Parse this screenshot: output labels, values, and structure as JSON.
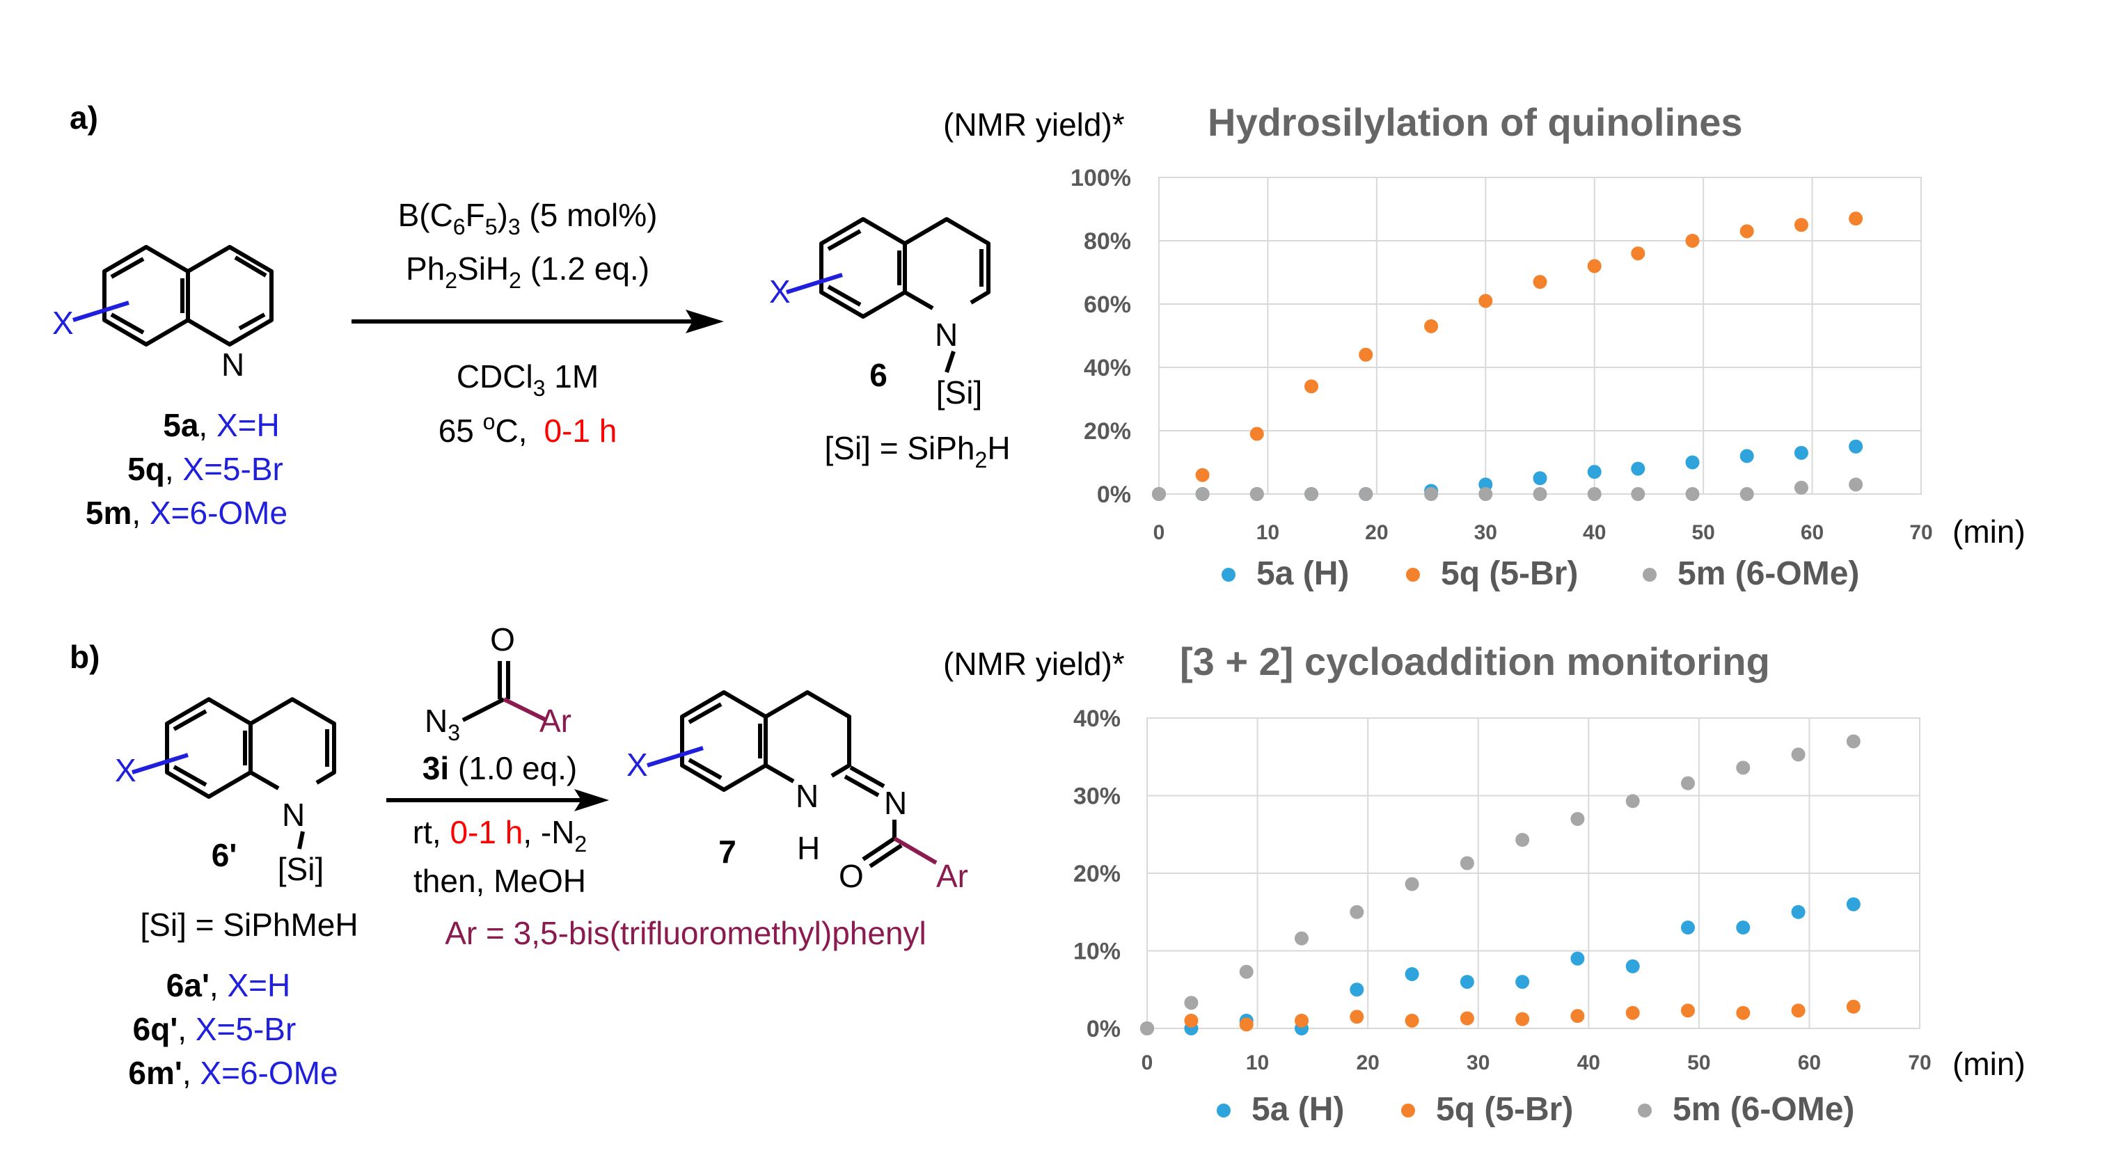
{
  "colors": {
    "blue_text": "#1f1fdc",
    "red_text": "#ff0000",
    "maroon_text": "#8b1a4f",
    "series_5a": "#2ea3dc",
    "series_5q": "#f4822c",
    "series_5m": "#a6a6a6",
    "chart_text": "#595959",
    "title_text": "#666666"
  },
  "panel_a": {
    "label": "a)",
    "sm_label_5a": "5a",
    "sm_eq_5a": "X=H",
    "sm_label_5q": "5q",
    "sm_eq_5q": "X=5-Br",
    "sm_label_5m": "5m",
    "sm_eq_5m": "X=6-OMe",
    "x_sub": "X",
    "n_atom": "N",
    "cond_catalyst_pre": "B(C",
    "cond_catalyst_sub1": "6",
    "cond_catalyst_mid": "F",
    "cond_catalyst_sub2": "5",
    "cond_catalyst_post1": ")",
    "cond_catalyst_sub3": "3",
    "cond_catalyst_post2": " (5 mol%)",
    "cond_silane_pre": "Ph",
    "cond_silane_sub1": "2",
    "cond_silane_mid": "SiH",
    "cond_silane_sub2": "2",
    "cond_silane_post": " (1.2 eq.)",
    "cond_solvent_pre": "CDCl",
    "cond_solvent_sub": "3",
    "cond_solvent_post": " 1M",
    "cond_temp_pre": "65 ",
    "cond_temp_sup": "o",
    "cond_temp_post": "C,",
    "cond_time": "0-1 h",
    "product_label": "6",
    "product_si": "[Si]",
    "si_def_pre": "[Si] = SiPh",
    "si_def_sub": "2",
    "si_def_post": "H"
  },
  "panel_b": {
    "label": "b)",
    "sm_label": "6'",
    "sm_si": "[Si]",
    "si_def": "[Si] = SiPhMeH",
    "sm_label_6a": "6a'",
    "sm_eq_6a": "X=H",
    "sm_label_6q": "6q'",
    "sm_eq_6q": "X=5-Br",
    "sm_label_6m": "6m'",
    "sm_eq_6m": "X=6-OMe",
    "x_sub": "X",
    "n_atom": "N",
    "reagent_O": "O",
    "reagent_N3_pre": "N",
    "reagent_N3_sub": "3",
    "reagent_Ar": "Ar",
    "reagent_label": "3i",
    "reagent_eq": " (1.0 eq.)",
    "cond_rt": "rt, ",
    "cond_time": "0-1 h",
    "cond_n2_pre": ", -N",
    "cond_n2_sub": "2",
    "cond_then": "then, MeOH",
    "ar_def": "Ar = 3,5-bis(trifluoromethyl)phenyl",
    "product_label": "7",
    "product_NH_N": "N",
    "product_NH_H": "H",
    "product_N": "N",
    "product_O": "O",
    "product_Ar": "Ar"
  },
  "chart_data": [
    {
      "type": "scatter",
      "title": "Hydrosilylation of quinolines",
      "ylabel": "(NMR yield)*",
      "xlabel": "(min)",
      "xlim": [
        0,
        70
      ],
      "ylim": [
        0,
        100
      ],
      "xticks": [
        0,
        10,
        20,
        30,
        40,
        50,
        60,
        70
      ],
      "xtick_labels": [
        "0",
        "10",
        "20",
        "30",
        "40",
        "50",
        "60",
        "70"
      ],
      "yticks": [
        0,
        20,
        40,
        60,
        80,
        100
      ],
      "ytick_labels": [
        "0%",
        "20%",
        "40%",
        "60%",
        "80%",
        "100%"
      ],
      "grid": true,
      "legend_position": "bottom",
      "series": [
        {
          "name": "5a (H)",
          "color_key": "series_5a",
          "x": [
            0,
            4,
            9,
            14,
            19,
            25,
            30,
            35,
            40,
            44,
            49,
            54,
            59,
            64
          ],
          "y": [
            0,
            0,
            0,
            0,
            0,
            1,
            3,
            5,
            7,
            8,
            10,
            12,
            13,
            15
          ]
        },
        {
          "name": "5q (5-Br)",
          "color_key": "series_5q",
          "x": [
            0,
            4,
            9,
            14,
            19,
            25,
            30,
            35,
            40,
            44,
            49,
            54,
            59,
            64
          ],
          "y": [
            0,
            6,
            19,
            34,
            44,
            53,
            61,
            67,
            72,
            76,
            80,
            83,
            85,
            87
          ]
        },
        {
          "name": "5m (6-OMe)",
          "color_key": "series_5m",
          "x": [
            0,
            4,
            9,
            14,
            19,
            25,
            30,
            35,
            40,
            44,
            49,
            54,
            59,
            64
          ],
          "y": [
            0,
            0,
            0,
            0,
            0,
            0,
            0,
            0,
            0,
            0,
            0,
            0,
            2,
            3
          ]
        }
      ]
    },
    {
      "type": "scatter",
      "title": "[3 + 2] cycloaddition monitoring",
      "ylabel": "(NMR yield)*",
      "xlabel": "(min)",
      "xlim": [
        0,
        70
      ],
      "ylim": [
        0,
        40
      ],
      "xticks": [
        0,
        10,
        20,
        30,
        40,
        50,
        60,
        70
      ],
      "xtick_labels": [
        "0",
        "10",
        "20",
        "30",
        "40",
        "50",
        "60",
        "70"
      ],
      "yticks": [
        0,
        10,
        20,
        30,
        40
      ],
      "ytick_labels": [
        "0%",
        "10%",
        "20%",
        "30%",
        "40%"
      ],
      "grid": true,
      "legend_position": "bottom",
      "series": [
        {
          "name": "5a (H)",
          "color_key": "series_5a",
          "x": [
            0,
            4,
            9,
            14,
            19,
            24,
            29,
            34,
            39,
            44,
            49,
            54,
            59,
            64
          ],
          "y": [
            0,
            0,
            1,
            0,
            5,
            7,
            6,
            6,
            9,
            8,
            13,
            13,
            15,
            16
          ]
        },
        {
          "name": "5q (5-Br)",
          "color_key": "series_5q",
          "x": [
            0,
            4,
            9,
            14,
            19,
            24,
            29,
            34,
            39,
            44,
            49,
            54,
            59,
            64
          ],
          "y": [
            0,
            1,
            0.5,
            1,
            1.5,
            1,
            1.3,
            1.2,
            1.6,
            2,
            2.3,
            2,
            2.3,
            2.8
          ]
        },
        {
          "name": "5m (6-OMe)",
          "color_key": "series_5m",
          "x": [
            0,
            4,
            9,
            14,
            19,
            24,
            29,
            34,
            39,
            44,
            49,
            54,
            59,
            64
          ],
          "y": [
            0,
            3.3,
            7.3,
            11.6,
            15,
            18.6,
            21.3,
            24.3,
            27,
            29.3,
            31.6,
            33.6,
            35.3,
            37
          ]
        }
      ]
    }
  ]
}
